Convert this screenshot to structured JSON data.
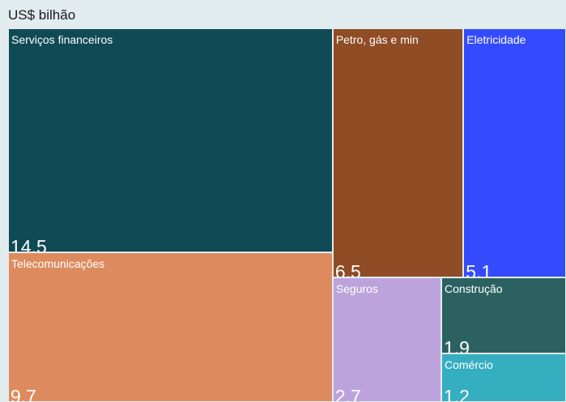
{
  "chart_data": {
    "type": "treemap",
    "unit_label": "US$ bilhão",
    "items": [
      {
        "name": "Serviços financeiros",
        "value": 14.5,
        "value_label": "14,5",
        "color": "#104a55"
      },
      {
        "name": "Telecomunicações",
        "value": 9.7,
        "value_label": "9,7",
        "color": "#dd8b5e"
      },
      {
        "name": "Petro, gás e min",
        "value": 6.5,
        "value_label": "6,5",
        "color": "#8f4c25"
      },
      {
        "name": "Eletricidade",
        "value": 5.1,
        "value_label": "5,1",
        "color": "#344bfd"
      },
      {
        "name": "Seguros",
        "value": 2.7,
        "value_label": "2,7",
        "color": "#bca3dc"
      },
      {
        "name": "Construção",
        "value": 1.9,
        "value_label": "1,9",
        "color": "#2b6261"
      },
      {
        "name": "Comércio",
        "value": 1.2,
        "value_label": "1,2",
        "color": "#35aec0"
      }
    ]
  }
}
